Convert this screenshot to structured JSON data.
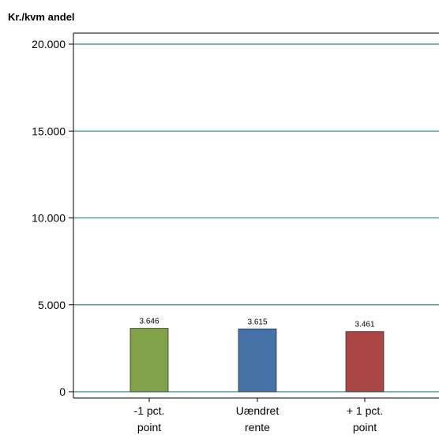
{
  "chart_data": {
    "type": "bar",
    "ylabel": "Kr./kvm andel",
    "xlabel": "",
    "title": "",
    "ylim": [
      0,
      20000
    ],
    "yticks": [
      0,
      5000,
      10000,
      15000,
      20000
    ],
    "ytick_labels": [
      "0",
      "5.000",
      "10.000",
      "15.000",
      "20.000"
    ],
    "grid": true,
    "categories": [
      {
        "lines": [
          "-1 pct.",
          "point"
        ]
      },
      {
        "lines": [
          "Uændret",
          "rente"
        ]
      },
      {
        "lines": [
          "+ 1 pct.",
          "point"
        ]
      }
    ],
    "values": [
      3646,
      3615,
      3461
    ],
    "value_labels": [
      "3.646",
      "3.615",
      "3.461"
    ],
    "colors": [
      "#82a24a",
      "#4572a7",
      "#aa4643"
    ],
    "gridline_color": "#2e8b8b",
    "axis_color": "#000000"
  }
}
